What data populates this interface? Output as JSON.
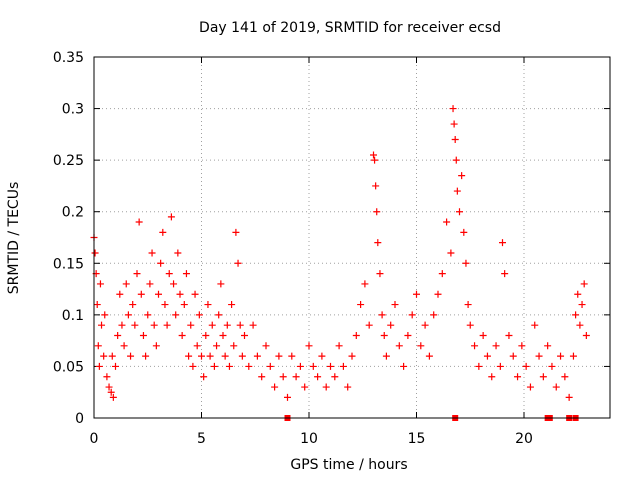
{
  "chart_data": {
    "type": "scatter",
    "title": "Day 141 of 2019, SRMTID for receiver ecsd",
    "xlabel": "GPS time / hours",
    "ylabel": "SRMTID / TECUs",
    "xlim": [
      0,
      24
    ],
    "ylim": [
      0,
      0.35
    ],
    "xticks": [
      0,
      5,
      10,
      15,
      20
    ],
    "xtick_labels": [
      "0",
      "5",
      "10",
      "15",
      "20"
    ],
    "yticks": [
      0,
      0.05,
      0.1,
      0.15,
      0.2,
      0.25,
      0.3,
      0.35
    ],
    "ytick_labels": [
      "0",
      "0.05",
      "0.1",
      "0.15",
      "0.2",
      "0.25",
      "0.3",
      "0.35"
    ],
    "grid": true,
    "marker": "+",
    "series": [
      {
        "name": "SRMTID",
        "color": "#ff0000",
        "points": [
          [
            0.0,
            0.175
          ],
          [
            0.05,
            0.16
          ],
          [
            0.1,
            0.14
          ],
          [
            0.15,
            0.11
          ],
          [
            0.2,
            0.07
          ],
          [
            0.25,
            0.05
          ],
          [
            0.3,
            0.13
          ],
          [
            0.35,
            0.09
          ],
          [
            0.45,
            0.06
          ],
          [
            0.5,
            0.1
          ],
          [
            0.6,
            0.04
          ],
          [
            0.7,
            0.03
          ],
          [
            0.8,
            0.025
          ],
          [
            0.85,
            0.06
          ],
          [
            0.9,
            0.02
          ],
          [
            1.0,
            0.05
          ],
          [
            1.1,
            0.08
          ],
          [
            1.2,
            0.12
          ],
          [
            1.3,
            0.09
          ],
          [
            1.4,
            0.07
          ],
          [
            1.5,
            0.13
          ],
          [
            1.6,
            0.1
          ],
          [
            1.7,
            0.06
          ],
          [
            1.8,
            0.11
          ],
          [
            1.9,
            0.09
          ],
          [
            2.0,
            0.14
          ],
          [
            2.1,
            0.19
          ],
          [
            2.2,
            0.12
          ],
          [
            2.3,
            0.08
          ],
          [
            2.4,
            0.06
          ],
          [
            2.5,
            0.1
          ],
          [
            2.6,
            0.13
          ],
          [
            2.7,
            0.16
          ],
          [
            2.8,
            0.09
          ],
          [
            2.9,
            0.07
          ],
          [
            3.0,
            0.12
          ],
          [
            3.1,
            0.15
          ],
          [
            3.2,
            0.18
          ],
          [
            3.3,
            0.11
          ],
          [
            3.4,
            0.09
          ],
          [
            3.5,
            0.14
          ],
          [
            3.6,
            0.195
          ],
          [
            3.7,
            0.13
          ],
          [
            3.8,
            0.1
          ],
          [
            3.9,
            0.16
          ],
          [
            4.0,
            0.12
          ],
          [
            4.1,
            0.08
          ],
          [
            4.2,
            0.11
          ],
          [
            4.3,
            0.14
          ],
          [
            4.4,
            0.06
          ],
          [
            4.5,
            0.09
          ],
          [
            4.6,
            0.05
          ],
          [
            4.7,
            0.12
          ],
          [
            4.8,
            0.07
          ],
          [
            4.9,
            0.1
          ],
          [
            5.0,
            0.06
          ],
          [
            5.1,
            0.04
          ],
          [
            5.2,
            0.08
          ],
          [
            5.3,
            0.11
          ],
          [
            5.4,
            0.06
          ],
          [
            5.5,
            0.09
          ],
          [
            5.6,
            0.05
          ],
          [
            5.7,
            0.07
          ],
          [
            5.8,
            0.1
          ],
          [
            5.9,
            0.13
          ],
          [
            6.0,
            0.08
          ],
          [
            6.1,
            0.06
          ],
          [
            6.2,
            0.09
          ],
          [
            6.3,
            0.05
          ],
          [
            6.4,
            0.11
          ],
          [
            6.5,
            0.07
          ],
          [
            6.6,
            0.18
          ],
          [
            6.7,
            0.15
          ],
          [
            6.8,
            0.09
          ],
          [
            6.9,
            0.06
          ],
          [
            7.0,
            0.08
          ],
          [
            7.2,
            0.05
          ],
          [
            7.4,
            0.09
          ],
          [
            7.6,
            0.06
          ],
          [
            7.8,
            0.04
          ],
          [
            8.0,
            0.07
          ],
          [
            8.2,
            0.05
          ],
          [
            8.4,
            0.03
          ],
          [
            8.6,
            0.06
          ],
          [
            8.8,
            0.04
          ],
          [
            9.0,
            0.02
          ],
          [
            9.2,
            0.06
          ],
          [
            9.4,
            0.04
          ],
          [
            9.6,
            0.05
          ],
          [
            9.8,
            0.03
          ],
          [
            10.0,
            0.07
          ],
          [
            10.2,
            0.05
          ],
          [
            10.4,
            0.04
          ],
          [
            10.6,
            0.06
          ],
          [
            10.8,
            0.03
          ],
          [
            11.0,
            0.05
          ],
          [
            11.2,
            0.04
          ],
          [
            11.4,
            0.07
          ],
          [
            11.6,
            0.05
          ],
          [
            11.8,
            0.03
          ],
          [
            12.0,
            0.06
          ],
          [
            12.2,
            0.08
          ],
          [
            12.4,
            0.11
          ],
          [
            12.6,
            0.13
          ],
          [
            12.8,
            0.09
          ],
          [
            13.0,
            0.255
          ],
          [
            13.05,
            0.25
          ],
          [
            13.1,
            0.225
          ],
          [
            13.15,
            0.2
          ],
          [
            13.2,
            0.17
          ],
          [
            13.3,
            0.14
          ],
          [
            13.4,
            0.1
          ],
          [
            13.5,
            0.08
          ],
          [
            13.6,
            0.06
          ],
          [
            13.8,
            0.09
          ],
          [
            14.0,
            0.11
          ],
          [
            14.2,
            0.07
          ],
          [
            14.4,
            0.05
          ],
          [
            14.6,
            0.08
          ],
          [
            14.8,
            0.1
          ],
          [
            15.0,
            0.12
          ],
          [
            15.2,
            0.07
          ],
          [
            15.4,
            0.09
          ],
          [
            15.6,
            0.06
          ],
          [
            15.8,
            0.1
          ],
          [
            16.0,
            0.12
          ],
          [
            16.2,
            0.14
          ],
          [
            16.4,
            0.19
          ],
          [
            16.6,
            0.16
          ],
          [
            16.7,
            0.3
          ],
          [
            16.75,
            0.285
          ],
          [
            16.8,
            0.27
          ],
          [
            16.85,
            0.25
          ],
          [
            16.9,
            0.22
          ],
          [
            17.0,
            0.2
          ],
          [
            17.1,
            0.235
          ],
          [
            17.2,
            0.18
          ],
          [
            17.3,
            0.15
          ],
          [
            17.4,
            0.11
          ],
          [
            17.5,
            0.09
          ],
          [
            17.7,
            0.07
          ],
          [
            17.9,
            0.05
          ],
          [
            18.1,
            0.08
          ],
          [
            18.3,
            0.06
          ],
          [
            18.5,
            0.04
          ],
          [
            18.7,
            0.07
          ],
          [
            18.9,
            0.05
          ],
          [
            19.0,
            0.17
          ],
          [
            19.1,
            0.14
          ],
          [
            19.3,
            0.08
          ],
          [
            19.5,
            0.06
          ],
          [
            19.7,
            0.04
          ],
          [
            19.9,
            0.07
          ],
          [
            20.1,
            0.05
          ],
          [
            20.3,
            0.03
          ],
          [
            20.5,
            0.09
          ],
          [
            20.7,
            0.06
          ],
          [
            20.9,
            0.04
          ],
          [
            21.1,
            0.07
          ],
          [
            21.3,
            0.05
          ],
          [
            21.5,
            0.03
          ],
          [
            21.7,
            0.06
          ],
          [
            21.9,
            0.04
          ],
          [
            22.1,
            0.02
          ],
          [
            22.3,
            0.06
          ],
          [
            22.4,
            0.1
          ],
          [
            22.5,
            0.12
          ],
          [
            22.6,
            0.09
          ],
          [
            22.7,
            0.11
          ],
          [
            22.8,
            0.13
          ],
          [
            22.9,
            0.08
          ]
        ]
      }
    ],
    "zero_markers_x": [
      9.0,
      16.8,
      21.1,
      21.2,
      22.1,
      22.4
    ]
  }
}
